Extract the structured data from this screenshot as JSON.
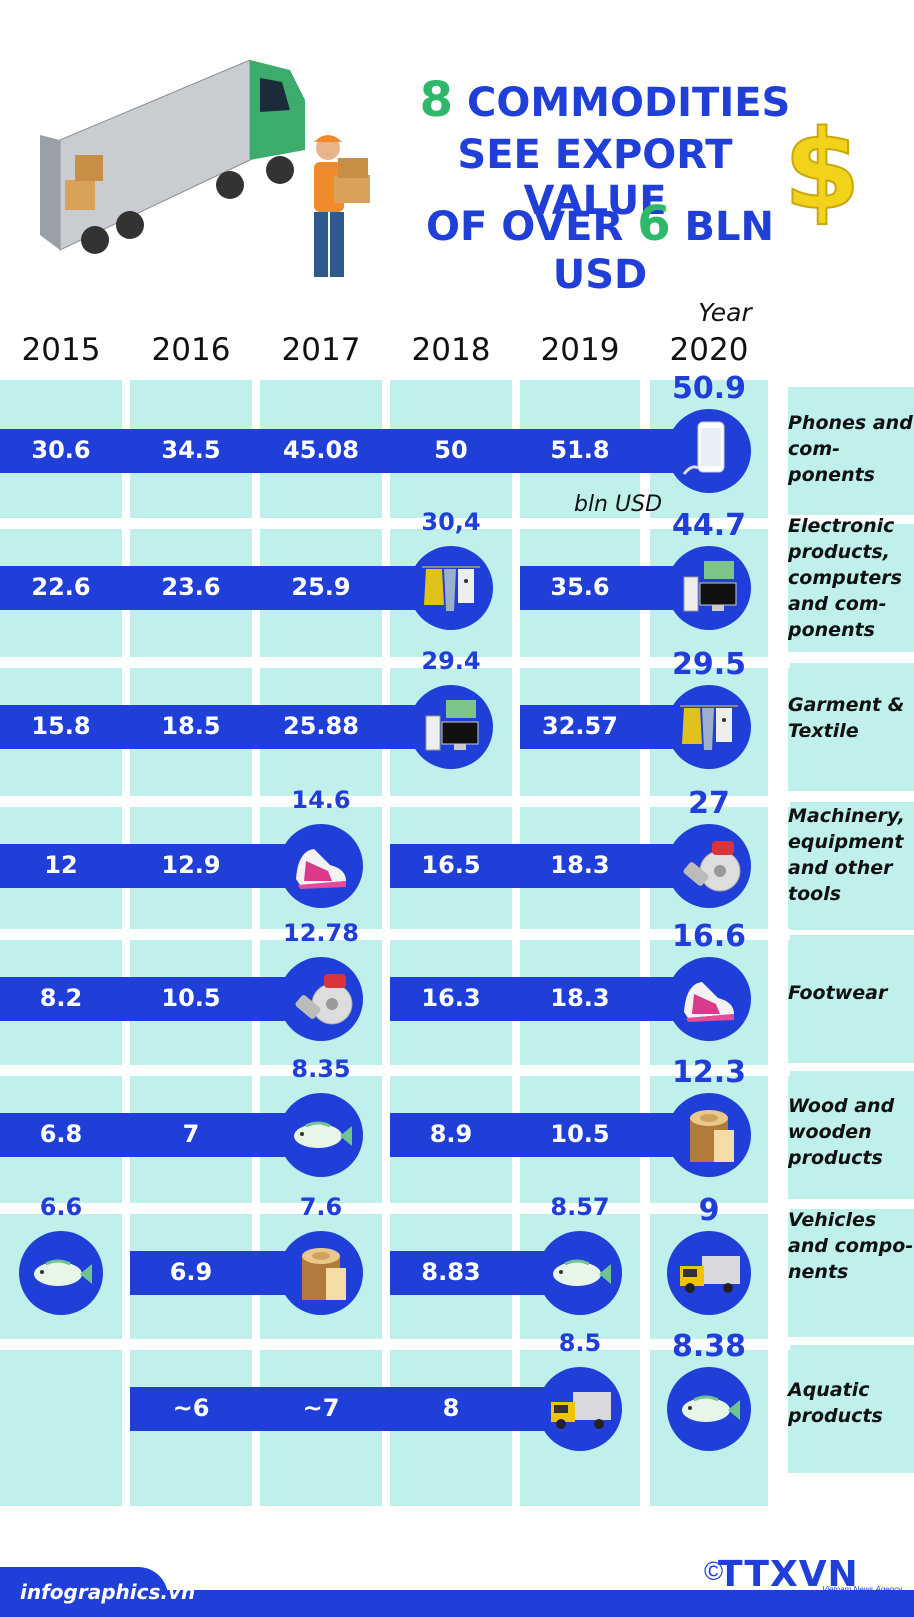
{
  "title": {
    "line1_num": "8",
    "line1_text": " COMMODITIES",
    "line2": "SEE EXPORT VALUE",
    "line3_a": "OF OVER ",
    "line3_num": "6",
    "line3_b": " BLN USD"
  },
  "year_caption": "Year",
  "unit_note": "bln USD",
  "colors": {
    "band": "#1f3fd8",
    "column_bg": "#bff0ec",
    "highlight_num": "#2fb86a",
    "dollar": "#f2d21b"
  },
  "chart_data": {
    "type": "table",
    "years": [
      "2015",
      "2016",
      "2017",
      "2018",
      "2019",
      "2020"
    ],
    "rows": [
      {
        "label": "Phones and com-ponents",
        "values": [
          "30.6",
          "34.5",
          "45.08",
          "50",
          "51.8",
          "50.9"
        ]
      },
      {
        "label": "Electronic products, computers and com-ponents",
        "values": [
          "22.6",
          "23.6",
          "25.9",
          "30,4",
          "35.6",
          "44.7"
        ]
      },
      {
        "label": "Garment & Textile",
        "values": [
          "15.8",
          "18.5",
          "25.88",
          "29.4",
          "32.57",
          "29.5"
        ]
      },
      {
        "label": "Machinery, equipment and other tools",
        "values": [
          "12",
          "12.9",
          "14.6",
          "16.5",
          "18.3",
          "27"
        ]
      },
      {
        "label": "Footwear",
        "values": [
          "8.2",
          "10.5",
          "12.78",
          "16.3",
          "18.3",
          "16.6"
        ]
      },
      {
        "label": "Wood and wooden products",
        "values": [
          "6.8",
          "7",
          "8.35",
          "8.9",
          "10.5",
          "12.3"
        ]
      },
      {
        "label": "Vehicles and compo-nents",
        "values": [
          "6.6",
          "6.9",
          "7.6",
          "8.83",
          "8.57",
          "9"
        ]
      },
      {
        "label": "Aquatic products",
        "values": [
          "",
          "~6",
          "~7",
          "8",
          "8.5",
          "8.38"
        ]
      }
    ],
    "icons": [
      {
        "key": "phone-icon",
        "depicts": "smartphone"
      },
      {
        "key": "garment-icon",
        "depicts": "clothes rack"
      },
      {
        "key": "computer-icon",
        "depicts": "computer and circuit board"
      },
      {
        "key": "shoe-icon",
        "depicts": "sneaker"
      },
      {
        "key": "machinery-icon",
        "depicts": "drill and brake disc"
      },
      {
        "key": "fish-icon",
        "depicts": "fish"
      },
      {
        "key": "wood-icon",
        "depicts": "tree stump"
      },
      {
        "key": "truck-icon",
        "depicts": "truck"
      }
    ]
  },
  "footer": {
    "site": "infographics.vn",
    "logo": "TTXVN",
    "logo_sub": "Vietnam News Agency",
    "copyright": "©"
  }
}
